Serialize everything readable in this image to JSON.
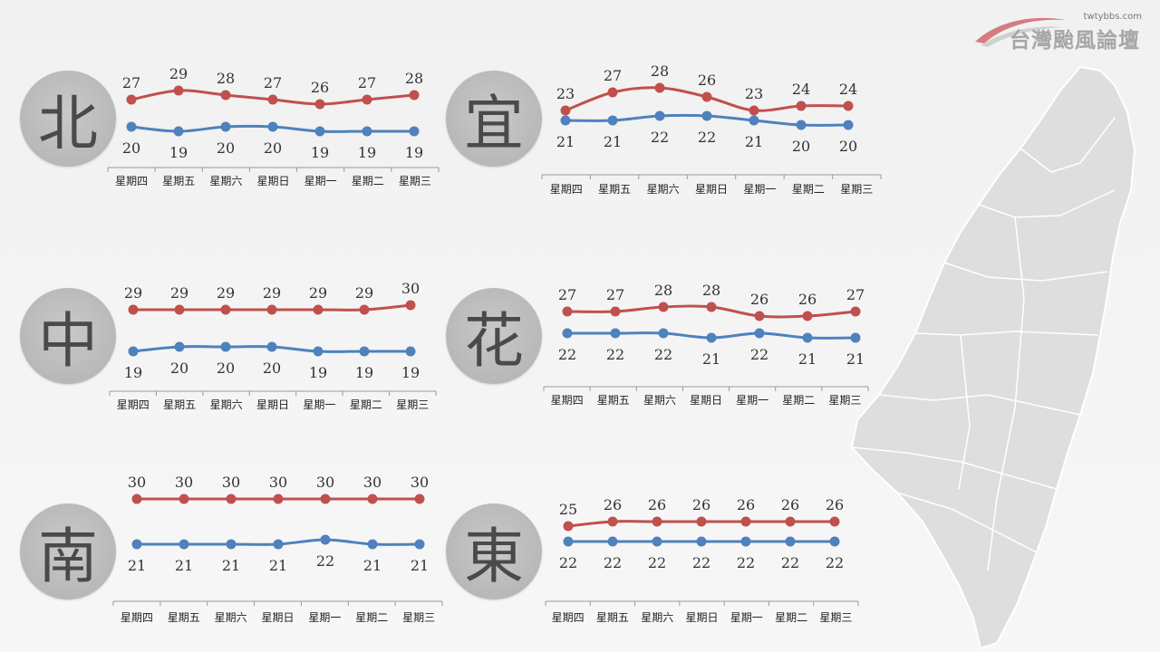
{
  "brand": {
    "site": "twtybbs.com",
    "name": "台灣颱風論壇"
  },
  "colors": {
    "high": "#c0504d",
    "low": "#4f81bd",
    "circle": "#bdbdbd",
    "text": "#333333"
  },
  "chart_data": [
    {
      "type": "line",
      "region": "北",
      "categories": [
        "星期四",
        "星期五",
        "星期六",
        "星期日",
        "星期一",
        "星期二",
        "星期三"
      ],
      "series": [
        {
          "values": [
            27,
            29,
            28,
            27,
            26,
            27,
            28
          ]
        },
        {
          "values": [
            20,
            19,
            20,
            20,
            19,
            19,
            19
          ]
        }
      ]
    },
    {
      "type": "line",
      "region": "宜",
      "categories": [
        "星期四",
        "星期五",
        "星期六",
        "星期日",
        "星期一",
        "星期二",
        "星期三"
      ],
      "series": [
        {
          "values": [
            23,
            27,
            28,
            26,
            23,
            24,
            24
          ]
        },
        {
          "values": [
            21,
            21,
            22,
            22,
            21,
            20,
            20
          ]
        }
      ]
    },
    {
      "type": "line",
      "region": "中",
      "categories": [
        "星期四",
        "星期五",
        "星期六",
        "星期日",
        "星期一",
        "星期二",
        "星期三"
      ],
      "series": [
        {
          "values": [
            29,
            29,
            29,
            29,
            29,
            29,
            30
          ]
        },
        {
          "values": [
            19,
            20,
            20,
            20,
            19,
            19,
            19
          ]
        }
      ]
    },
    {
      "type": "line",
      "region": "花",
      "categories": [
        "星期四",
        "星期五",
        "星期六",
        "星期日",
        "星期一",
        "星期二",
        "星期三"
      ],
      "series": [
        {
          "values": [
            27,
            27,
            28,
            28,
            26,
            26,
            27
          ]
        },
        {
          "values": [
            22,
            22,
            22,
            21,
            22,
            21,
            21
          ]
        }
      ]
    },
    {
      "type": "line",
      "region": "南",
      "categories": [
        "星期四",
        "星期五",
        "星期六",
        "星期日",
        "星期一",
        "星期二",
        "星期三"
      ],
      "series": [
        {
          "values": [
            30,
            30,
            30,
            30,
            30,
            30,
            30
          ]
        },
        {
          "values": [
            21,
            21,
            21,
            21,
            22,
            21,
            21
          ]
        }
      ]
    },
    {
      "type": "line",
      "region": "東",
      "categories": [
        "星期四",
        "星期五",
        "星期六",
        "星期日",
        "星期一",
        "星期二",
        "星期三"
      ],
      "series": [
        {
          "values": [
            25,
            26,
            26,
            26,
            26,
            26,
            26
          ]
        },
        {
          "values": [
            22,
            22,
            22,
            22,
            22,
            22,
            22
          ]
        }
      ]
    }
  ]
}
